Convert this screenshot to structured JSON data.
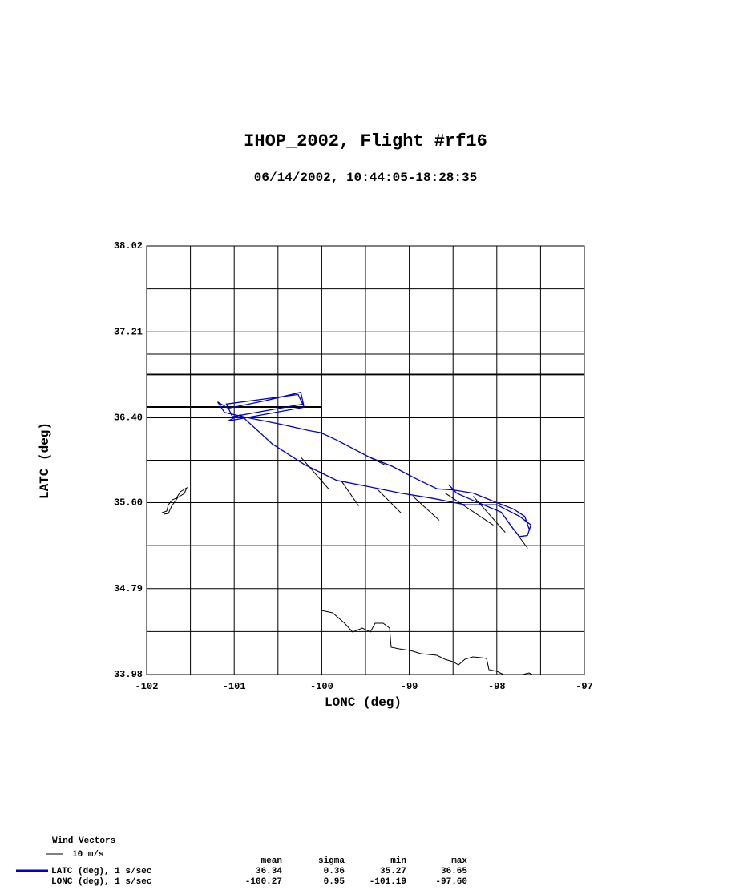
{
  "chart_data": {
    "type": "line",
    "title": "IHOP_2002, Flight #rf16",
    "subtitle": "06/14/2002, 10:44:05-18:28:35",
    "x_label": "LONC (deg)",
    "y_label": "LATC (deg)",
    "xlim": [
      -102,
      -97
    ],
    "ylim": [
      33.98,
      38.02
    ],
    "xticks": [
      -102,
      -101,
      -100,
      -99,
      -98,
      -97
    ],
    "yticks": [
      33.98,
      34.79,
      {
        "value": 35.6,
        "label": "35.60"
      },
      {
        "value": 36.4,
        "label": "36.40"
      },
      37.21,
      38.02
    ],
    "grid": true,
    "series": [
      {
        "name": "LATC (deg), 1 s/sec",
        "color": "#0000cc",
        "x": [
          -97.63,
          -97.68,
          -97.81,
          -98.0,
          -98.27,
          -98.5,
          -98.68,
          -98.91,
          -99.19,
          -99.46,
          -99.83,
          -100.01,
          -100.15,
          -100.47,
          -100.84,
          -101.11,
          -101.19,
          -101.07,
          -100.65,
          -100.24,
          -100.21,
          -101.02,
          -101.09,
          -100.27,
          -100.2,
          -101.07,
          -100.93,
          -100.56,
          -100.2,
          -99.83,
          -99.46,
          -99.1,
          -98.73,
          -98.36,
          -98.0,
          -97.74,
          -97.61,
          -97.65,
          -97.74,
          -97.81,
          -97.95,
          -98.27,
          -98.46,
          -98.55
        ],
        "y": [
          35.35,
          35.47,
          35.54,
          35.6,
          35.69,
          35.72,
          35.73,
          35.82,
          35.94,
          36.03,
          36.19,
          36.26,
          36.28,
          36.34,
          36.4,
          36.45,
          36.55,
          36.49,
          36.56,
          36.64,
          36.53,
          36.41,
          36.53,
          36.62,
          36.5,
          36.37,
          36.43,
          36.15,
          35.96,
          35.81,
          35.75,
          35.69,
          35.64,
          35.58,
          35.58,
          35.47,
          35.39,
          35.29,
          35.28,
          35.35,
          35.51,
          35.62,
          35.69,
          35.77
        ]
      }
    ],
    "wind": {
      "name": "Wind Vectors",
      "scale_label": "10 m/s",
      "scale_value": 10,
      "color": "#000000",
      "x": [
        -100.24,
        -99.78,
        -99.37,
        -98.96,
        -98.59,
        -98.27,
        -97.95,
        -99.46
      ],
      "y": [
        36.03,
        35.81,
        35.73,
        35.66,
        35.69,
        35.66,
        35.51,
        36.03
      ],
      "u": [
        15.9,
        10.0,
        13.6,
        15.0,
        27.3,
        18.2,
        15.0,
        9.1
      ],
      "v": [
        -18.2,
        -14.5,
        -13.6,
        -13.6,
        -18.2,
        -20.5,
        -20.5,
        -4.5
      ]
    }
  },
  "stats_table": {
    "columns": [
      "mean",
      "sigma",
      "min",
      "max"
    ],
    "rows": [
      {
        "label": "LATC (deg), 1 s/sec",
        "values": [
          "36.34",
          "0.36",
          "35.27",
          "36.65"
        ]
      },
      {
        "label": "LONC (deg), 1 s/sec",
        "values": [
          "-100.27",
          "0.95",
          "-101.19",
          "-97.60"
        ]
      }
    ]
  }
}
